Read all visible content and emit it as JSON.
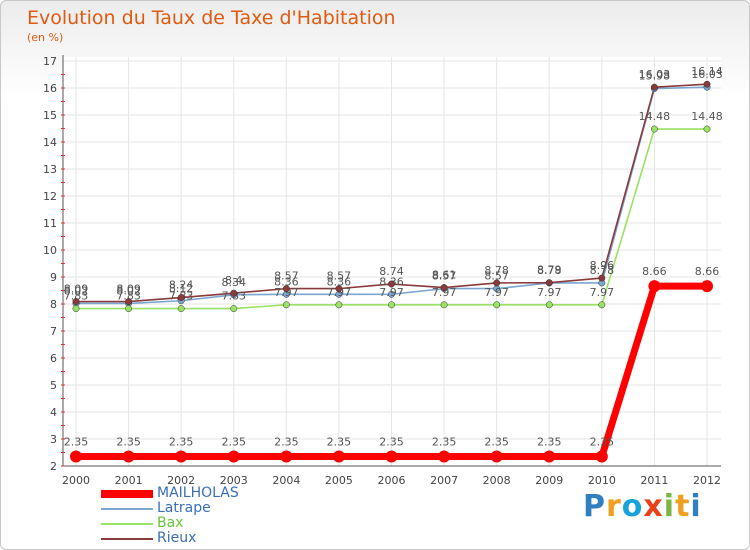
{
  "title": "Evolution du Taux de Taxe d'Habitation",
  "unit_label": "(en %)",
  "logo": {
    "letters": [
      "P",
      "r",
      "o",
      "x",
      "i",
      "t",
      "i"
    ],
    "colors": [
      "#2f7fc1",
      "#f0a020",
      "#1aa3d8",
      "#e8421a",
      "#7cb342",
      "#f0a020",
      "#2f7fc1"
    ]
  },
  "chart_data": {
    "type": "line",
    "title": "Evolution du Taux de Taxe d'Habitation",
    "ylabel": "(en %)",
    "xlabel": "",
    "ylim": [
      2,
      17
    ],
    "yticks": [
      "2",
      "3",
      "4",
      "5",
      "6",
      "7",
      "8",
      "9",
      "10",
      "11",
      "12",
      "13",
      "14",
      "15",
      "16",
      "17"
    ],
    "categories": [
      "2000",
      "2001",
      "2002",
      "2003",
      "2004",
      "2005",
      "2006",
      "2007",
      "2008",
      "2009",
      "2010",
      "2011",
      "2012"
    ],
    "series": [
      {
        "name": "MAILHOLAS",
        "color": "#ff0000",
        "values": [
          2.35,
          2.35,
          2.35,
          2.35,
          2.35,
          2.35,
          2.35,
          2.35,
          2.35,
          2.35,
          2.35,
          8.66,
          8.66
        ],
        "labels": [
          "2.35",
          "2.35",
          "2.35",
          "2.35",
          "2.35",
          "2.35",
          "2.35",
          "2.35",
          "2.35",
          "2.35",
          "2.35",
          "8.66",
          "8.66"
        ]
      },
      {
        "name": "Latrape",
        "color": "#7aa6d2",
        "values": [
          8.02,
          8.02,
          8.12,
          8.34,
          8.36,
          8.36,
          8.36,
          8.57,
          8.57,
          8.78,
          8.78,
          15.98,
          16.03
        ],
        "labels": [
          "8.02",
          "8.02",
          "8.12",
          "8.34",
          "8.36",
          "8.36",
          "8.36",
          "8.57",
          "8.57",
          "8.78",
          "8.78",
          "15.98",
          "16.03"
        ]
      },
      {
        "name": "Bax",
        "color": "#99e265",
        "values": [
          7.83,
          7.83,
          7.83,
          7.83,
          7.97,
          7.97,
          7.97,
          7.97,
          7.97,
          7.97,
          7.97,
          14.48,
          14.48
        ],
        "labels": [
          "7.83",
          "7.83",
          "7.83",
          "7.83",
          "7.97",
          "7.97",
          "7.97",
          "7.97",
          "7.97",
          "7.97",
          "7.97",
          "14.48",
          "14.48"
        ]
      },
      {
        "name": "Rieux",
        "color": "#8a3a3a",
        "values": [
          8.09,
          8.09,
          8.24,
          8.4,
          8.57,
          8.57,
          8.74,
          8.61,
          8.78,
          8.79,
          8.96,
          16.03,
          16.14
        ],
        "labels": [
          "8.09",
          "8.09",
          "8.24",
          "8.4",
          "8.57",
          "8.57",
          "8.74",
          "8.61",
          "8.78",
          "8.79",
          "8.96",
          "16.03",
          "16.14"
        ]
      }
    ],
    "grid": true,
    "legend": "bottom-left"
  }
}
